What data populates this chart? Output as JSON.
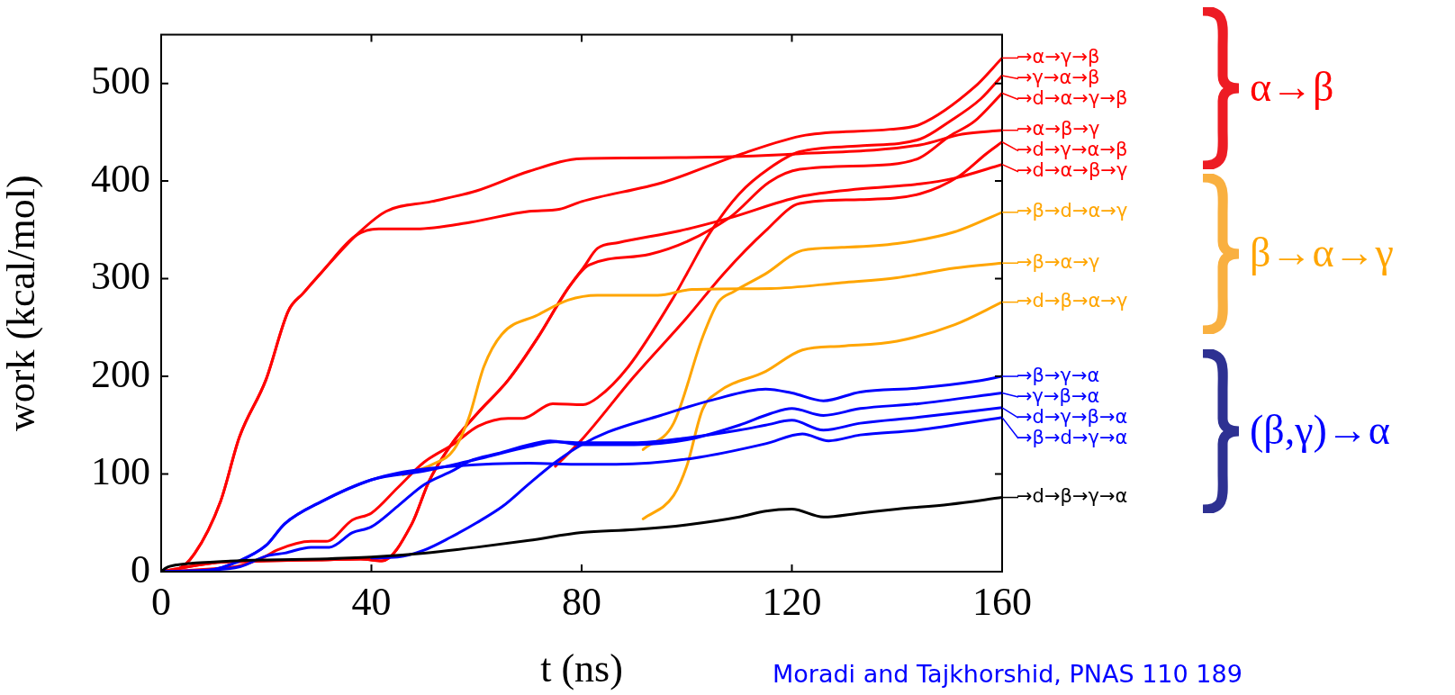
{
  "chart_data": {
    "type": "line",
    "xlabel": "t (ns)",
    "ylabel": "work (kcal/mol)",
    "xlim": [
      0,
      160
    ],
    "xticks": [
      0,
      40,
      80,
      120,
      160
    ],
    "ylim": [
      0,
      550
    ],
    "yticks": [
      0,
      100,
      200,
      300,
      400,
      500
    ],
    "legend": "right",
    "annotations": [
      "α→β",
      "β→α→γ",
      "(β,γ)→α",
      "Moradi and Tajkhorshid, PNAS 110 189"
    ],
    "series": [
      {
        "name": "→α→γ→β",
        "color": "#ff0000",
        "x": [
          0,
          3,
          6.3,
          11.3,
          14.9,
          19.9,
          24.2,
          27,
          30.6,
          37,
          41.4,
          48.5,
          59,
          70,
          75.7,
          80,
          95.7,
          110,
          122.6,
          138.7,
          144.4,
          154.7,
          160
        ],
        "values": [
          0,
          2,
          18,
          72,
          138,
          196,
          267,
          285,
          307,
          344,
          351,
          351,
          358,
          369,
          371,
          379,
          399,
          427,
          447,
          453,
          458,
          496,
          526
        ]
      },
      {
        "name": "→γ→α→β",
        "color": "#ff0000",
        "x": [
          0,
          10,
          15,
          20,
          22,
          28.5,
          31.4,
          36.4,
          40,
          45,
          50,
          55.7,
          60.3,
          66,
          68.8,
          74.5,
          80.3,
          83,
          88.9,
          97.5,
          100,
          104.3,
          110,
          115.7,
          121.5,
          133,
          144.4,
          150,
          155.9,
          160
        ],
        "values": [
          0,
          3,
          6,
          16,
          22,
          31,
          31,
          53,
          60,
          86,
          112,
          131,
          149,
          157,
          157,
          172,
          171,
          178,
          210,
          281,
          305,
          346,
          387,
          413,
          430,
          436,
          443,
          461,
          484,
          508
        ]
      },
      {
        "name": "→d→α→γ→β",
        "color": "#ff0000",
        "x": [
          0,
          10,
          20,
          30,
          38,
          42,
          47.7,
          51,
          55.7,
          60.3,
          66,
          71.7,
          77.4,
          81.4,
          92.9,
          108,
          115.7,
          121.5,
          138.7,
          144.4,
          150,
          154.7,
          160
        ],
        "values": [
          0,
          9,
          11,
          12,
          13,
          11,
          49,
          93,
          134,
          163,
          196,
          240,
          290,
          314,
          325,
          362,
          399,
          412,
          417,
          424,
          446,
          461,
          490
        ]
      },
      {
        "name": "→α→β→γ",
        "color": "#ff0000",
        "x": [
          0,
          3,
          6.3,
          11.3,
          14.9,
          19.9,
          24.2,
          27,
          30.6,
          37,
          42.8,
          51.4,
          60,
          70,
          80,
          98.6,
          121.5,
          144.4,
          152.4,
          160
        ],
        "values": [
          0,
          2,
          18,
          72,
          138,
          196,
          267,
          285,
          307,
          344,
          369,
          379,
          390,
          410,
          423,
          424,
          428,
          437,
          448,
          452
        ]
      },
      {
        "name": "→d→γ→α→β",
        "color": "#ff0000",
        "x": [
          75,
          80,
          90,
          100,
          107,
          115,
          121.5,
          133,
          144.4,
          151.8,
          157,
          160
        ],
        "values": [
          108,
          135,
          200,
          260,
          305,
          349,
          377,
          381,
          387,
          405,
          428,
          440
        ]
      },
      {
        "name": "→d→α→β→γ",
        "color": "#ff0000",
        "x": [
          0,
          10,
          20,
          30,
          38,
          42,
          47.7,
          51,
          55.7,
          60.3,
          66,
          71.7,
          77.4,
          80.3,
          83,
          87,
          98.6,
          108,
          121.5,
          133,
          144.4,
          151,
          160
        ],
        "values": [
          0,
          9,
          11,
          12,
          13,
          11,
          49,
          93,
          134,
          163,
          196,
          240,
          290,
          311,
          331,
          337,
          349,
          362,
          384,
          392,
          397,
          403,
          417
        ]
      },
      {
        "name": "→β→d→α→γ",
        "color": "#ffa500",
        "x": [
          91.7,
          97.5,
          103,
          106,
          109,
          115,
          122,
          129.5,
          140,
          151,
          160
        ],
        "values": [
          125,
          152,
          240,
          276,
          287,
          305,
          329,
          332,
          336,
          348,
          368
        ]
      },
      {
        "name": "→β→α→γ",
        "color": "#ffa500",
        "x": [
          46,
          51.7,
          55.7,
          58.5,
          61.4,
          64.8,
          71.7,
          77.4,
          83,
          94.5,
          101,
          116,
          129.5,
          140,
          151,
          160
        ],
        "values": [
          99,
          110,
          125,
          157,
          210,
          243,
          263,
          278,
          283,
          283,
          289,
          290,
          296,
          301,
          311,
          316
        ]
      },
      {
        "name": "→d→β→α→γ",
        "color": "#ffa500",
        "x": [
          91.7,
          97.5,
          100,
          103,
          106,
          115,
          122,
          129.5,
          140,
          151,
          160
        ],
        "values": [
          54,
          78,
          108,
          166,
          184,
          205,
          227,
          231,
          236,
          253,
          276
        ]
      },
      {
        "name": "→β→γ→α",
        "color": "#0000ff",
        "x": [
          40,
          45,
          50,
          55,
          60,
          65,
          70,
          75,
          80,
          85,
          95,
          105,
          115,
          120,
          126,
          133,
          144,
          155,
          160
        ],
        "values": [
          14,
          15,
          22,
          35,
          50,
          67,
          90,
          112,
          130,
          143,
          160,
          176,
          187,
          183,
          175,
          184,
          188,
          195,
          200
        ]
      },
      {
        "name": "→γ→β→α",
        "color": "#0000ff",
        "x": [
          0,
          10,
          15,
          20,
          23.5,
          28.5,
          32,
          36.4,
          40,
          45,
          50,
          55.7,
          59,
          64,
          70,
          74,
          80,
          90,
          100,
          110,
          116,
          120,
          126,
          133,
          144,
          160
        ],
        "values": [
          0,
          2,
          5,
          16,
          19,
          25,
          25,
          40,
          46,
          67,
          89,
          104,
          114,
          121,
          130,
          134,
          130,
          130,
          135,
          150,
          162,
          167,
          160,
          167,
          172,
          183
        ]
      },
      {
        "name": "→d→γ→β→α",
        "color": "#0000ff",
        "x": [
          0,
          5,
          10,
          14,
          20,
          23.5,
          30.6,
          40,
          50,
          60,
          70,
          75,
          80,
          90,
          100,
          110,
          115,
          120,
          126,
          133,
          144,
          160
        ],
        "values": [
          0,
          0,
          2,
          9,
          27,
          49,
          72,
          94,
          103,
          115,
          128,
          133,
          132,
          132,
          137,
          145,
          150,
          155,
          145,
          152,
          158,
          168
        ]
      },
      {
        "name": "→β→d→γ→α",
        "color": "#0000ff",
        "x": [
          0,
          5,
          10,
          14,
          20,
          23.5,
          30.6,
          40,
          45,
          55.7,
          70,
          80,
          86.6,
          101,
          115,
          122,
          127,
          133,
          144,
          160
        ],
        "values": [
          0,
          0,
          2,
          9,
          27,
          49,
          72,
          94,
          101,
          108,
          111,
          110,
          110,
          116,
          131,
          141,
          134,
          140,
          145,
          158
        ]
      },
      {
        "name": "→d→β→γ→α",
        "color": "#000000",
        "x": [
          0,
          1,
          3,
          10,
          20,
          30,
          40,
          50,
          60,
          70,
          80,
          90,
          100,
          110,
          115,
          120,
          126,
          133,
          140,
          150,
          160
        ],
        "values": [
          0,
          4,
          7,
          10,
          12,
          13,
          15,
          19,
          25,
          32,
          40,
          43,
          48,
          56,
          62,
          64,
          56,
          60,
          64,
          69,
          76
        ]
      }
    ]
  }
}
